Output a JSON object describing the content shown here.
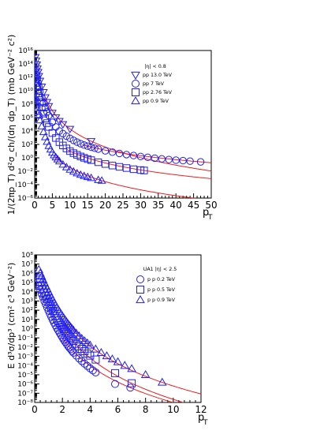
{
  "chart_data": [
    {
      "type": "scatter",
      "log_y": true,
      "xlim": [
        0,
        50
      ],
      "ylim_exp": [
        -6,
        16
      ],
      "xticks": [
        0,
        5,
        10,
        15,
        20,
        25,
        30,
        35,
        40,
        45,
        50
      ],
      "yticks_exp": [
        -6,
        -4,
        -2,
        0,
        2,
        4,
        6,
        8,
        10,
        12,
        14,
        16
      ],
      "xlabel": "p",
      "xlabel_sub": "T",
      "ylabel": "1/(2πp_T) d²σ_ch/(dη dp_T) (mb GeV⁻² c²)",
      "legend_title": "|η| < 0.8",
      "legend_position": "top-right",
      "series": [
        {
          "name": "pp  13.0 TeV",
          "marker": "triangle-down",
          "x": [
            0.2,
            0.4,
            0.6,
            0.8,
            1.0,
            1.2,
            1.5,
            2.0,
            2.5,
            3.0,
            3.5,
            4.0,
            5.0,
            6.0,
            7.0,
            8.0,
            10.0,
            16.0
          ],
          "y": [
            1000000000000000.0,
            300000000000000.0,
            80000000000000.0,
            20000000000000.0,
            6000000000000.0,
            1500000000000.0,
            300000000000.0,
            40000000000.0,
            6000000000.0,
            1000000000.0,
            200000000.0,
            50000000.0,
            5000000.0,
            1000000.0,
            300000.0,
            100000.0,
            20000.0,
            300.0
          ]
        },
        {
          "name": "pp 7 TeV",
          "marker": "circle",
          "x": [
            0.2,
            0.4,
            0.6,
            0.8,
            1.0,
            1.2,
            1.5,
            2.0,
            2.5,
            3.0,
            3.5,
            4.0,
            5.0,
            6.0,
            7.0,
            8.0,
            9.0,
            10.0,
            11.0,
            12.0,
            13.0,
            14.0,
            15.0,
            16.0,
            17.0,
            18.0,
            20.0,
            22.0,
            24.0,
            26.0,
            28.0,
            30.0,
            32.0,
            34.0,
            36.0,
            38.0,
            40.0,
            42.0,
            44.0,
            47.0
          ],
          "y": [
            20000000000000.0,
            6000000000000.0,
            2000000000000.0,
            600000000000.0,
            150000000000.0,
            40000000000.0,
            8000000000.0,
            1000000000.0,
            150000000.0,
            30000000.0,
            7000000.0,
            2000000.0,
            200000.0,
            40000.0,
            10000.0,
            4000.0,
            1700.0,
            800.0,
            400.0,
            220.0,
            130.0,
            80,
            55,
            38,
            27,
            20,
            11,
            7,
            4.5,
            3,
            2.2,
            1.6,
            1.2,
            0.9,
            0.7,
            0.55,
            0.45,
            0.38,
            0.32,
            0.25
          ]
        },
        {
          "name": "pp  2.76 TeV",
          "marker": "square",
          "x": [
            0.2,
            0.4,
            0.6,
            0.8,
            1.0,
            1.2,
            1.5,
            2.0,
            2.5,
            3.0,
            3.5,
            4.0,
            5.0,
            6.0,
            7.0,
            8.0,
            9.0,
            10.0,
            11.0,
            12.0,
            13.0,
            14.0,
            15.0,
            16.0,
            18.0,
            20.0,
            22.0,
            24.0,
            26.0,
            28.0,
            30.0,
            31.0
          ],
          "y": [
            500000000000.0,
            150000000000.0,
            50000000000.0,
            15000000000.0,
            4000000000.0,
            1000000000.0,
            200000000.0,
            30000000.0,
            4000000.0,
            700000.0,
            150000.0,
            40000.0,
            5000.0,
            900.0,
            220.0,
            70,
            25,
            10,
            5,
            2.8,
            1.6,
            1,
            0.65,
            0.45,
            0.22,
            0.12,
            0.07,
            0.045,
            0.03,
            0.02,
            0.015,
            0.013
          ]
        },
        {
          "name": "pp  0.9 TeV",
          "marker": "triangle-up",
          "x": [
            0.2,
            0.4,
            0.6,
            0.8,
            1.0,
            1.2,
            1.5,
            2.0,
            2.5,
            3.0,
            3.5,
            4.0,
            4.5,
            5.0,
            5.5,
            6.0,
            6.5,
            7.0,
            8.0,
            9.0,
            10.0,
            11.0,
            12.0,
            13.0,
            14.0,
            15.0,
            16.0,
            18.0,
            19.0
          ],
          "y": [
            1000000000.0,
            300000000.0,
            90000000.0,
            25000000.0,
            7000000.0,
            2000000.0,
            400000.0,
            50000.0,
            7000.0,
            1200.0,
            250.0,
            60,
            18,
            6,
            2.5,
            1.2,
            0.6,
            0.3,
            0.1,
            0.04,
            0.018,
            0.009,
            0.005,
            0.003,
            0.002,
            0.0014,
            0.001,
            0.0005,
            0.0004
          ]
        }
      ],
      "fit_curves": 4
    },
    {
      "type": "scatter",
      "log_y": true,
      "xlim": [
        0,
        12
      ],
      "ylim_exp": [
        -8,
        8
      ],
      "xticks": [
        0,
        2,
        4,
        6,
        8,
        10,
        12
      ],
      "yticks_exp": [
        -8,
        -7,
        -6,
        -5,
        -4,
        -3,
        -2,
        -1,
        0,
        1,
        2,
        3,
        4,
        5,
        6,
        7,
        8
      ],
      "xlabel": "p",
      "xlabel_sub": "T",
      "ylabel": "E d³σ/dp³ (cm² c³ GeV⁻²)",
      "legend_title": "UA1 |η| < 2.5",
      "legend_position": "top-right",
      "series": [
        {
          "name": "p p  0.2 TeV",
          "marker": "circle",
          "x": [
            0.3,
            0.4,
            0.5,
            0.6,
            0.7,
            0.8,
            0.9,
            1.0,
            1.1,
            1.2,
            1.3,
            1.4,
            1.5,
            1.6,
            1.7,
            1.8,
            1.9,
            2.0,
            2.1,
            2.2,
            2.3,
            2.4,
            2.5,
            2.6,
            2.7,
            2.8,
            3.0,
            3.2,
            3.4,
            3.6,
            3.8,
            4.0,
            4.2,
            4.4,
            5.8,
            6.9
          ],
          "y": [
            40000.0,
            16000.0,
            6000.0,
            2500.0,
            1000.0,
            450.0,
            200.0,
            90,
            40,
            19,
            9,
            4.5,
            2.3,
            1.2,
            0.65,
            0.36,
            0.2,
            0.11,
            0.065,
            0.038,
            0.023,
            0.014,
            0.009,
            0.006,
            0.0038,
            0.0025,
            0.0012,
            0.0006,
            0.0003,
            0.00016,
            9e-05,
            5e-05,
            3e-05,
            1.8e-05,
            1e-06,
            4e-07
          ]
        },
        {
          "name": "p p  0.5 TeV",
          "marker": "square",
          "x": [
            0.3,
            0.4,
            0.5,
            0.6,
            0.7,
            0.8,
            0.9,
            1.0,
            1.1,
            1.2,
            1.3,
            1.4,
            1.5,
            1.6,
            1.7,
            1.8,
            1.9,
            2.0,
            2.1,
            2.2,
            2.3,
            2.4,
            2.5,
            2.6,
            2.7,
            2.8,
            3.0,
            3.2,
            3.4,
            3.6,
            3.8,
            4.0,
            4.4,
            5.8,
            7.0
          ],
          "y": [
            300000.0,
            120000.0,
            50000.0,
            20000.0,
            8000.0,
            3500.0,
            1600.0,
            750.0,
            350.0,
            170.0,
            85,
            45,
            24,
            13,
            7.5,
            4.3,
            2.5,
            1.5,
            0.9,
            0.56,
            0.36,
            0.23,
            0.15,
            0.1,
            0.068,
            0.047,
            0.023,
            0.012,
            0.0065,
            0.0036,
            0.002,
            0.0012,
            0.00045,
            1.5e-05,
            1.2e-06
          ]
        },
        {
          "name": "p p  0.9 TeV",
          "marker": "triangle-up",
          "x": [
            0.3,
            0.4,
            0.5,
            0.6,
            0.7,
            0.8,
            0.9,
            1.0,
            1.1,
            1.2,
            1.3,
            1.4,
            1.5,
            1.6,
            1.7,
            1.8,
            1.9,
            2.0,
            2.1,
            2.2,
            2.3,
            2.4,
            2.5,
            2.6,
            2.7,
            2.8,
            3.0,
            3.2,
            3.4,
            3.6,
            3.8,
            4.0,
            4.4,
            4.8,
            5.2,
            5.6,
            6.0,
            6.5,
            7.0,
            8.0,
            9.2
          ],
          "y": [
            2500000.0,
            1000000.0,
            450000.0,
            200000.0,
            90000.0,
            42000.0,
            20000.0,
            9500.0,
            4700.0,
            2400.0,
            1250.0,
            660.0,
            360.0,
            200.0,
            115.0,
            66,
            39,
            23,
            14,
            8.6,
            5.4,
            3.4,
            2.2,
            1.45,
            0.97,
            0.66,
            0.32,
            0.16,
            0.085,
            0.047,
            0.027,
            0.016,
            0.006,
            0.0025,
            0.0011,
            0.0005,
            0.00025,
            0.0001,
            4.5e-05,
            1e-05,
            1.5e-06
          ]
        }
      ],
      "fit_curves": 3
    }
  ]
}
